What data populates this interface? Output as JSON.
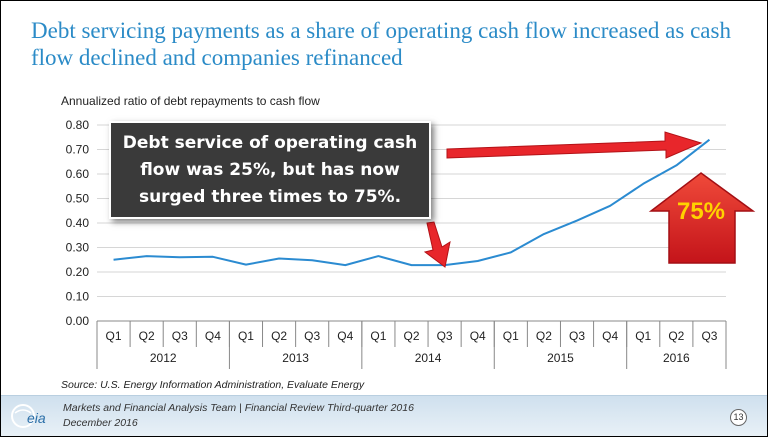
{
  "slide": {
    "title": "Debt servicing payments as a share of operating cash flow increased as cash flow declined and companies refinanced",
    "callout": "Debt service of operating cash flow was 25%, but has now surged three times to 75%.",
    "big_label": "75%",
    "source": "Source: U.S. Energy Information Administration, Evaluate Energy",
    "footer_line1": "Markets and Financial Analysis Team | Financial Review Third-quarter 2016",
    "footer_line2": "December 2016",
    "page_number": "13",
    "logo_text": "eia"
  },
  "colors": {
    "title": "#2b8bc7",
    "line": "#2b8bd1",
    "arrow": "#e8262b",
    "big_label": "#ffd200",
    "callout_bg": "#3a3a3a"
  },
  "chart_data": {
    "type": "line",
    "ylabel": "Annualized ratio of debt repayments to cash flow",
    "ylim": [
      0,
      0.8
    ],
    "yticks": [
      "0.00",
      "0.10",
      "0.20",
      "0.30",
      "0.40",
      "0.50",
      "0.60",
      "0.70",
      "0.80"
    ],
    "grid": "horizontal",
    "quarters": [
      "Q1",
      "Q2",
      "Q3",
      "Q4",
      "Q1",
      "Q2",
      "Q3",
      "Q4",
      "Q1",
      "Q2",
      "Q3",
      "Q4",
      "Q1",
      "Q2",
      "Q3",
      "Q4",
      "Q1",
      "Q2",
      "Q3"
    ],
    "years": [
      {
        "label": "2012",
        "quarters": 4
      },
      {
        "label": "2013",
        "quarters": 4
      },
      {
        "label": "2014",
        "quarters": 4
      },
      {
        "label": "2015",
        "quarters": 4
      },
      {
        "label": "2016",
        "quarters": 3
      }
    ],
    "series": [
      {
        "values": [
          0.25,
          0.265,
          0.26,
          0.262,
          0.23,
          0.255,
          0.248,
          0.228,
          0.265,
          0.228,
          0.228,
          0.245,
          0.28,
          0.355,
          0.41,
          0.47,
          0.56,
          0.635,
          0.74
        ]
      }
    ]
  }
}
